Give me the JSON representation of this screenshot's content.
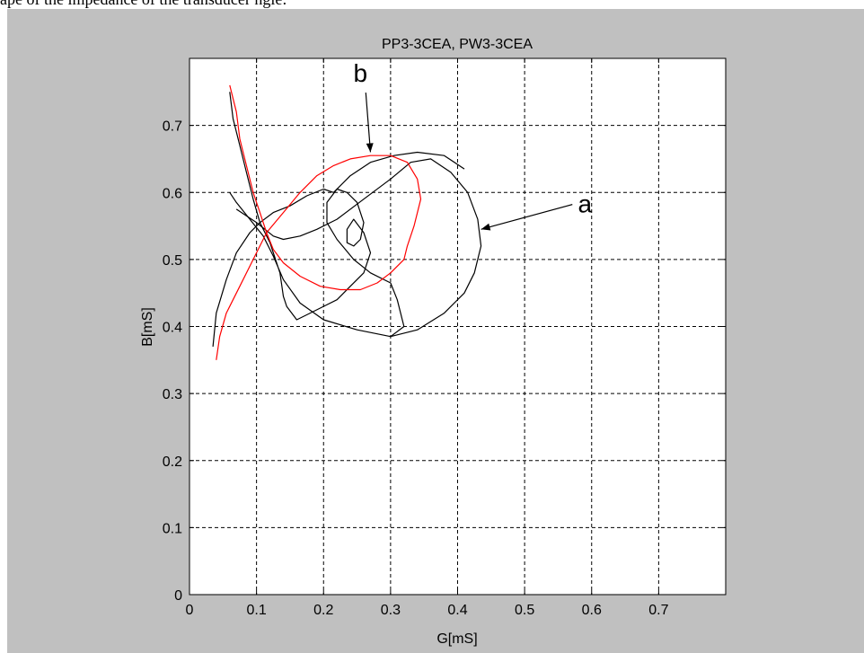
{
  "page": {
    "caption_fragment": "ape of the impedance of the transducer   ngle:"
  },
  "figure": {
    "background_color": "#c0c0c0"
  },
  "chart_data": {
    "type": "line",
    "title": "PP3-3CEA, PW3-3CEA",
    "xlabel": "G[mS]",
    "ylabel": "B[mS]",
    "xlim": [
      0,
      0.8
    ],
    "ylim": [
      0,
      0.8
    ],
    "x_ticks": [
      "0",
      "0.1",
      "0.2",
      "0.3",
      "0.4",
      "0.5",
      "0.6",
      "0.7"
    ],
    "y_ticks": [
      "0",
      "0.1",
      "0.2",
      "0.3",
      "0.4",
      "0.5",
      "0.6",
      "0.7"
    ],
    "x_tick_values": [
      0,
      0.1,
      0.2,
      0.3,
      0.4,
      0.5,
      0.6,
      0.7
    ],
    "y_tick_values": [
      0,
      0.1,
      0.2,
      0.3,
      0.4,
      0.5,
      0.6,
      0.7
    ],
    "grid": true,
    "series": [
      {
        "label": "a",
        "color": "#000000",
        "points": [
          [
            0.06,
            0.75
          ],
          [
            0.065,
            0.71
          ],
          [
            0.075,
            0.67
          ],
          [
            0.085,
            0.63
          ],
          [
            0.095,
            0.59
          ],
          [
            0.105,
            0.555
          ],
          [
            0.12,
            0.525
          ],
          [
            0.135,
            0.48
          ],
          [
            0.14,
            0.445
          ],
          [
            0.145,
            0.43
          ],
          [
            0.16,
            0.41
          ],
          [
            0.18,
            0.42
          ],
          [
            0.2,
            0.43
          ],
          [
            0.22,
            0.44
          ],
          [
            0.24,
            0.46
          ],
          [
            0.26,
            0.48
          ],
          [
            0.27,
            0.51
          ],
          [
            0.26,
            0.54
          ],
          [
            0.245,
            0.56
          ],
          [
            0.235,
            0.545
          ],
          [
            0.235,
            0.525
          ],
          [
            0.245,
            0.52
          ],
          [
            0.255,
            0.53
          ],
          [
            0.26,
            0.555
          ],
          [
            0.25,
            0.585
          ],
          [
            0.235,
            0.6
          ],
          [
            0.22,
            0.605
          ],
          [
            0.205,
            0.585
          ],
          [
            0.205,
            0.555
          ],
          [
            0.22,
            0.53
          ],
          [
            0.245,
            0.5
          ],
          [
            0.27,
            0.48
          ],
          [
            0.3,
            0.465
          ],
          [
            0.31,
            0.44
          ],
          [
            0.32,
            0.4
          ],
          [
            0.3,
            0.385
          ],
          [
            0.25,
            0.395
          ],
          [
            0.2,
            0.41
          ],
          [
            0.165,
            0.435
          ],
          [
            0.14,
            0.47
          ],
          [
            0.125,
            0.505
          ],
          [
            0.11,
            0.535
          ],
          [
            0.09,
            0.56
          ],
          [
            0.07,
            0.585
          ],
          [
            0.06,
            0.6
          ]
        ]
      },
      {
        "label": "a",
        "color": "#000000",
        "points": [
          [
            0.07,
            0.575
          ],
          [
            0.1,
            0.555
          ],
          [
            0.125,
            0.535
          ],
          [
            0.14,
            0.53
          ],
          [
            0.165,
            0.535
          ],
          [
            0.19,
            0.545
          ],
          [
            0.22,
            0.56
          ],
          [
            0.26,
            0.59
          ],
          [
            0.3,
            0.62
          ],
          [
            0.33,
            0.645
          ],
          [
            0.36,
            0.65
          ],
          [
            0.39,
            0.63
          ],
          [
            0.415,
            0.6
          ],
          [
            0.43,
            0.56
          ],
          [
            0.435,
            0.52
          ],
          [
            0.425,
            0.48
          ],
          [
            0.41,
            0.45
          ],
          [
            0.38,
            0.42
          ],
          [
            0.34,
            0.395
          ],
          [
            0.3,
            0.385
          ]
        ]
      },
      {
        "label": "a",
        "color": "#000000",
        "points": [
          [
            0.215,
            0.6
          ],
          [
            0.24,
            0.625
          ],
          [
            0.27,
            0.645
          ],
          [
            0.305,
            0.655
          ],
          [
            0.34,
            0.66
          ],
          [
            0.38,
            0.655
          ],
          [
            0.41,
            0.635
          ]
        ]
      },
      {
        "label": "a",
        "color": "#000000",
        "points": [
          [
            0.035,
            0.37
          ],
          [
            0.04,
            0.42
          ],
          [
            0.055,
            0.47
          ],
          [
            0.07,
            0.51
          ],
          [
            0.09,
            0.54
          ],
          [
            0.105,
            0.555
          ],
          [
            0.125,
            0.57
          ],
          [
            0.15,
            0.58
          ],
          [
            0.175,
            0.595
          ],
          [
            0.2,
            0.605
          ],
          [
            0.215,
            0.6
          ]
        ]
      },
      {
        "label": "b",
        "color": "#ff0000",
        "points": [
          [
            0.06,
            0.76
          ],
          [
            0.07,
            0.72
          ],
          [
            0.075,
            0.68
          ],
          [
            0.085,
            0.64
          ],
          [
            0.095,
            0.6
          ],
          [
            0.105,
            0.57
          ],
          [
            0.115,
            0.54
          ],
          [
            0.125,
            0.515
          ],
          [
            0.14,
            0.495
          ],
          [
            0.165,
            0.475
          ],
          [
            0.195,
            0.46
          ],
          [
            0.225,
            0.455
          ],
          [
            0.255,
            0.455
          ],
          [
            0.28,
            0.465
          ],
          [
            0.3,
            0.48
          ],
          [
            0.32,
            0.5
          ],
          [
            0.325,
            0.52
          ],
          [
            0.335,
            0.55
          ],
          [
            0.345,
            0.59
          ],
          [
            0.34,
            0.62
          ],
          [
            0.325,
            0.645
          ],
          [
            0.3,
            0.655
          ],
          [
            0.27,
            0.655
          ],
          [
            0.24,
            0.65
          ],
          [
            0.215,
            0.64
          ],
          [
            0.19,
            0.625
          ],
          [
            0.165,
            0.6
          ],
          [
            0.14,
            0.57
          ],
          [
            0.115,
            0.54
          ],
          [
            0.095,
            0.5
          ],
          [
            0.075,
            0.46
          ],
          [
            0.055,
            0.42
          ],
          [
            0.045,
            0.385
          ],
          [
            0.04,
            0.35
          ]
        ]
      }
    ],
    "annotations": [
      {
        "text": "a",
        "text_x": 0.59,
        "text_y": 0.57,
        "arrow_to": [
          0.435,
          0.545
        ]
      },
      {
        "text": "b",
        "text_x": 0.255,
        "text_y": 0.765,
        "arrow_to": [
          0.27,
          0.66
        ]
      }
    ]
  }
}
